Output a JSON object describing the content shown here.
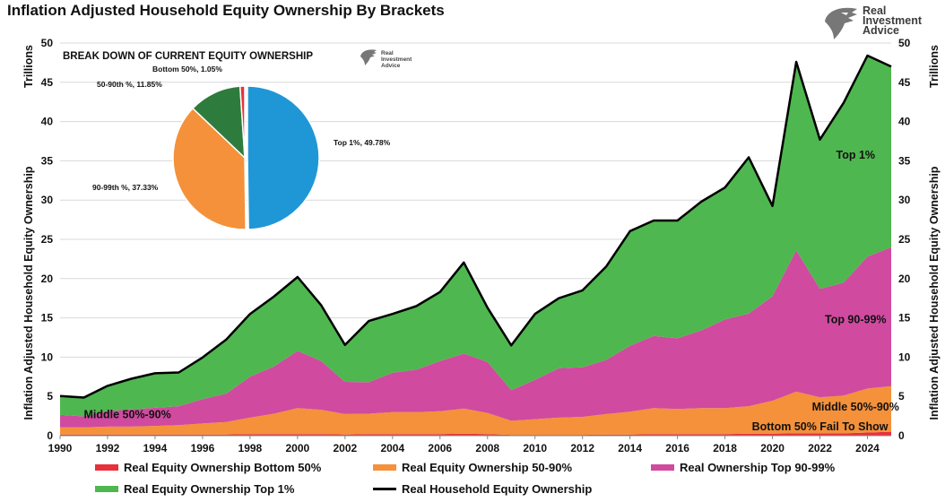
{
  "title": "Inflation Adjusted Household Equity Ownership By Brackets",
  "logo": {
    "brand": "Real\nInvestment\nAdvice",
    "icon": "eagle-head-icon"
  },
  "chart_data": [
    {
      "type": "area",
      "stacked": true,
      "ylabel_left": "Inflation Adjusted Household Equity Ownership",
      "yunit_left": "Trillions",
      "ylabel_right": "Inflation Adjusted Household Equity Ownership",
      "yunit_right": "Trillions",
      "ylim": [
        0,
        50
      ],
      "yticks": [
        0,
        5,
        10,
        15,
        20,
        25,
        30,
        35,
        40,
        45,
        50
      ],
      "xlim": [
        1990,
        2025
      ],
      "xticks": [
        1990,
        1992,
        1994,
        1996,
        1998,
        2000,
        2002,
        2004,
        2006,
        2008,
        2010,
        2012,
        2014,
        2016,
        2018,
        2020,
        2022,
        2024
      ],
      "grid": true,
      "legend_position": "bottom",
      "x": [
        1990,
        1991,
        1992,
        1993,
        1994,
        1995,
        1996,
        1997,
        1998,
        1999,
        2000,
        2001,
        2002,
        2003,
        2004,
        2005,
        2006,
        2007,
        2008,
        2009,
        2010,
        2011,
        2012,
        2013,
        2014,
        2015,
        2016,
        2017,
        2018,
        2019,
        2020,
        2021,
        2022,
        2023,
        2024,
        2025
      ],
      "series": [
        {
          "name": "Real Equity Ownership Bottom 50%",
          "color": "#e8313a",
          "values": [
            0.15,
            0.15,
            0.15,
            0.15,
            0.15,
            0.15,
            0.15,
            0.15,
            0.2,
            0.2,
            0.2,
            0.2,
            0.15,
            0.2,
            0.2,
            0.2,
            0.2,
            0.25,
            0.2,
            0.1,
            0.1,
            0.1,
            0.1,
            0.15,
            0.15,
            0.2,
            0.2,
            0.2,
            0.2,
            0.25,
            0.25,
            0.3,
            0.3,
            0.3,
            0.4,
            0.5
          ]
        },
        {
          "name": "Real Equity Ownership 50-90%",
          "color": "#f4913a",
          "values": [
            0.9,
            0.9,
            1.0,
            1.0,
            1.1,
            1.2,
            1.4,
            1.6,
            2.1,
            2.6,
            3.3,
            3.1,
            2.6,
            2.6,
            2.8,
            2.8,
            2.9,
            3.2,
            2.7,
            1.8,
            2.0,
            2.2,
            2.3,
            2.6,
            2.9,
            3.3,
            3.2,
            3.3,
            3.3,
            3.5,
            4.2,
            5.3,
            4.6,
            4.8,
            5.6,
            5.8
          ]
        },
        {
          "name": "Real Ownership Top 90-99%",
          "color": "#d04aa0",
          "values": [
            1.6,
            1.4,
            2.0,
            2.2,
            2.3,
            2.4,
            3.1,
            3.6,
            5.2,
            6.0,
            7.3,
            6.2,
            4.1,
            4.0,
            5.0,
            5.4,
            6.4,
            7.0,
            6.5,
            3.9,
            5.0,
            6.3,
            6.3,
            6.9,
            8.4,
            9.2,
            9.0,
            9.9,
            11.3,
            11.8,
            13.3,
            18.0,
            13.8,
            14.4,
            16.8,
            17.7
          ]
        },
        {
          "name": "Real Equity Ownership Top 1%",
          "color": "#4fb74f",
          "values": [
            2.4,
            2.4,
            3.2,
            3.9,
            4.4,
            4.3,
            5.3,
            6.9,
            8.0,
            8.9,
            9.4,
            7.1,
            4.7,
            7.8,
            7.5,
            8.1,
            8.8,
            11.6,
            6.9,
            5.7,
            8.4,
            8.9,
            9.8,
            11.9,
            14.6,
            14.7,
            15.0,
            16.4,
            16.8,
            19.9,
            11.5,
            24.0,
            19.0,
            22.9,
            25.6,
            23.0
          ]
        },
        {
          "name": "Real Household Equity Ownership",
          "color": "#000000",
          "type": "line",
          "values": [
            5.05,
            4.85,
            6.35,
            7.25,
            7.95,
            8.05,
            9.95,
            12.25,
            15.5,
            17.7,
            20.2,
            16.6,
            11.55,
            14.6,
            15.5,
            16.5,
            18.3,
            22.05,
            16.3,
            11.5,
            15.5,
            17.5,
            18.5,
            21.55,
            26.05,
            27.4,
            27.4,
            29.8,
            31.6,
            35.45,
            29.25,
            47.6,
            37.7,
            42.4,
            48.4,
            47.0
          ]
        }
      ],
      "annotations": [
        "Top 1%",
        "Top 90-99%",
        "Middle 50%-90%",
        "Middle 50%-90%",
        "Bottom 50% Fail To Show"
      ]
    },
    {
      "type": "pie",
      "title": "BREAK DOWN OF CURRENT EQUITY OWNERSHIP",
      "slices": [
        {
          "label": "Top 1%, 49.78%",
          "value": 49.78,
          "color": "#1f97d7"
        },
        {
          "label": "90-99th %, 37.33%",
          "value": 37.33,
          "color": "#f4913a"
        },
        {
          "label": "50-90th %, 11.85%",
          "value": 11.85,
          "color": "#2d7c3d"
        },
        {
          "label": "Bottom 50%, 1.05%",
          "value": 1.05,
          "color": "#e8313a"
        }
      ],
      "logo_brand": "Real\nInvestment\nAdvice"
    }
  ]
}
